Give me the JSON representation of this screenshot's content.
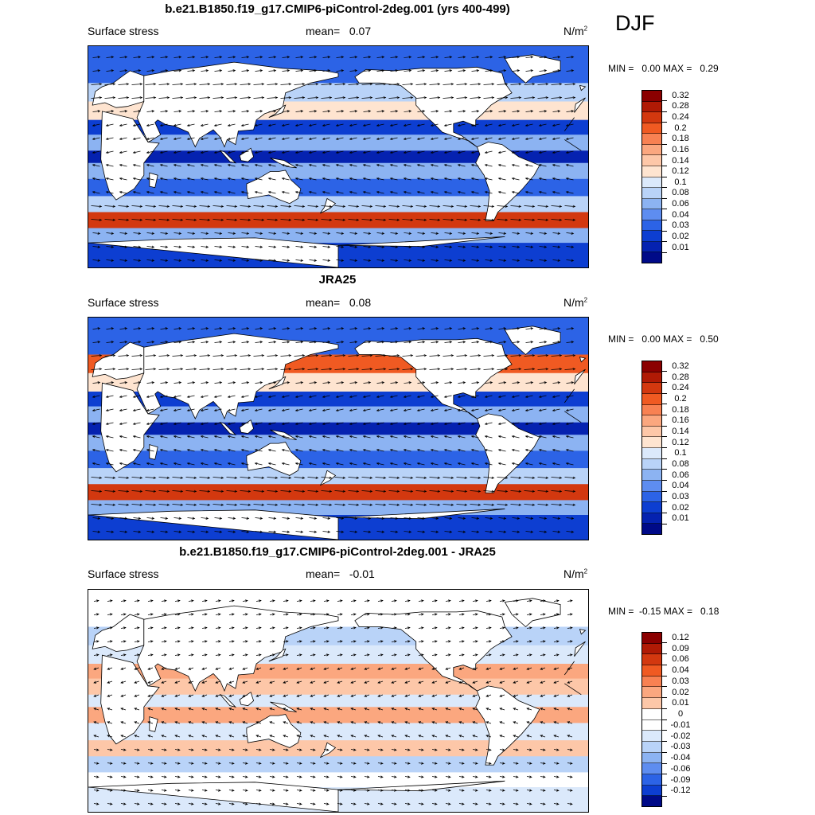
{
  "season": "DJF",
  "panels": [
    {
      "title": "b.e21.B1850.f19_g17.CMIP6-piControl-2deg.001 (yrs 400-499)",
      "left_label": "Surface stress",
      "mean_label": "mean=",
      "mean_value": "0.07",
      "units": "N/m",
      "units_sup": "2",
      "minmax": "MIN =   0.00 MAX =   0.29",
      "colorbar": {
        "labels": [
          "0.32",
          "0.28",
          "0.24",
          "0.2",
          "0.18",
          "0.16",
          "0.14",
          "0.12",
          "0.1",
          "0.08",
          "0.06",
          "0.04",
          "0.03",
          "0.02",
          "0.01"
        ],
        "colors": [
          "#8b0000",
          "#b01a05",
          "#d3380f",
          "#f05a22",
          "#f88152",
          "#fba77f",
          "#fdc7a8",
          "#fee4d0",
          "#dbe9fb",
          "#b9d3f8",
          "#8cb3f2",
          "#5e8df0",
          "#2c63e6",
          "#0d3ed1",
          "#0522b0",
          "#000a88"
        ]
      },
      "field": "model"
    },
    {
      "title": "JRA25",
      "left_label": "Surface stress",
      "mean_label": "mean=",
      "mean_value": "0.08",
      "units": "N/m",
      "units_sup": "2",
      "minmax": "MIN =   0.00 MAX =   0.50",
      "colorbar": {
        "labels": [
          "0.32",
          "0.28",
          "0.24",
          "0.2",
          "0.18",
          "0.16",
          "0.14",
          "0.12",
          "0.1",
          "0.08",
          "0.06",
          "0.04",
          "0.03",
          "0.02",
          "0.01"
        ],
        "colors": [
          "#8b0000",
          "#b01a05",
          "#d3380f",
          "#f05a22",
          "#f88152",
          "#fba77f",
          "#fdc7a8",
          "#fee4d0",
          "#dbe9fb",
          "#b9d3f8",
          "#8cb3f2",
          "#5e8df0",
          "#2c63e6",
          "#0d3ed1",
          "#0522b0",
          "#000a88"
        ]
      },
      "field": "obs"
    },
    {
      "title": "b.e21.B1850.f19_g17.CMIP6-piControl-2deg.001 - JRA25",
      "left_label": "Surface stress",
      "mean_label": "mean=",
      "mean_value": "-0.01",
      "units": "N/m",
      "units_sup": "2",
      "minmax": "MIN =  -0.15 MAX =   0.18",
      "colorbar": {
        "labels": [
          "0.12",
          "0.09",
          "0.06",
          "0.04",
          "0.03",
          "0.02",
          "0.01",
          "0",
          "-0.01",
          "-0.02",
          "-0.03",
          "-0.04",
          "-0.06",
          "-0.09",
          "-0.12"
        ],
        "colors": [
          "#8b0000",
          "#b01a05",
          "#d3380f",
          "#f05a22",
          "#f88152",
          "#fba77f",
          "#fdc7a8",
          "#ffffff",
          "#ffffff",
          "#dbe9fb",
          "#b9d3f8",
          "#8cb3f2",
          "#5e8df0",
          "#2c63e6",
          "#0d3ed1",
          "#000a88"
        ]
      },
      "field": "diff"
    }
  ]
}
